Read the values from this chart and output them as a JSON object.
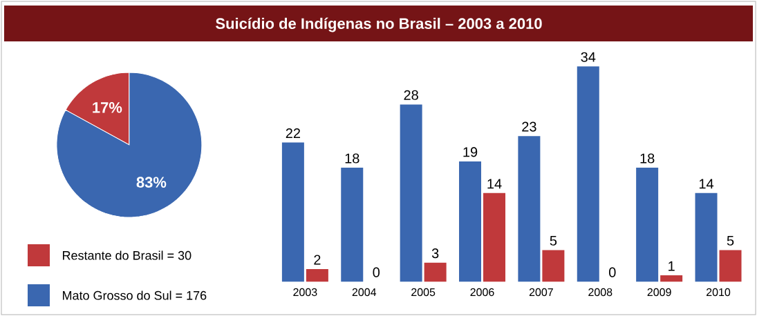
{
  "chart_data": [
    {
      "type": "pie",
      "categories": [
        "Restante do Brasil = 30",
        "Mato Grosso do Sul = 176"
      ],
      "values": [
        17,
        83
      ],
      "colors": [
        "#c0393b",
        "#3a67b0"
      ],
      "value_labels": [
        "17%",
        "83%"
      ],
      "legend": "bottom"
    },
    {
      "type": "bar",
      "title": "Suicídio de Indígenas no Brasil – 2003 a 2010",
      "categories": [
        "2003",
        "2004",
        "2005",
        "2006",
        "2007",
        "2008",
        "2009",
        "2010"
      ],
      "series": [
        {
          "color": "#3a67b0",
          "values": [
            22,
            18,
            28,
            19,
            23,
            34,
            18,
            14
          ]
        },
        {
          "color": "#c0393b",
          "values": [
            2,
            0,
            3,
            14,
            5,
            0,
            1,
            5
          ]
        }
      ],
      "data_labels": true
    }
  ]
}
